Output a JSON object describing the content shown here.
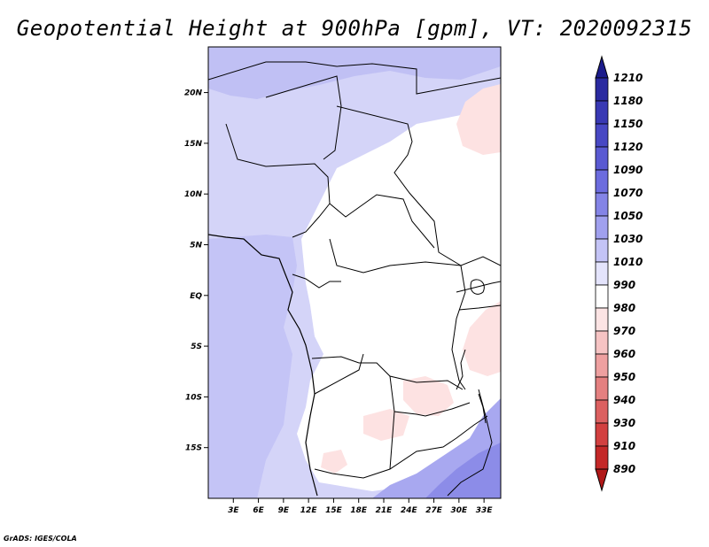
{
  "title": "Geopotential Height at 900hPa [gpm], VT: 2020092315",
  "footer": "GrADS: IGES/COLA",
  "map": {
    "lat_labels": [
      "20N",
      "15N",
      "10N",
      "5N",
      "EQ",
      "5S",
      "10S",
      "15S"
    ],
    "lat_values": [
      20,
      15,
      10,
      5,
      0,
      -5,
      -10,
      -15
    ],
    "lon_labels": [
      "3E",
      "6E",
      "9E",
      "12E",
      "15E",
      "18E",
      "21E",
      "24E",
      "27E",
      "30E",
      "33E"
    ],
    "lon_values": [
      3,
      6,
      9,
      12,
      15,
      18,
      21,
      24,
      27,
      30,
      33
    ],
    "lat_range": [
      -20,
      24.5
    ],
    "lon_range": [
      0,
      35
    ]
  },
  "colorbar": {
    "labels": [
      "1210",
      "1180",
      "1150",
      "1120",
      "1090",
      "1070",
      "1050",
      "1030",
      "1010",
      "990",
      "980",
      "970",
      "960",
      "950",
      "940",
      "930",
      "910",
      "890"
    ],
    "colors": [
      "#1c1c8c",
      "#2a2aa0",
      "#3939b4",
      "#4848c4",
      "#5a5ad2",
      "#6c6cde",
      "#8484e6",
      "#a0a0ee",
      "#c4c4f6",
      "#e4e4fc",
      "#ffffff",
      "#fce4e4",
      "#f6c4c4",
      "#eea0a0",
      "#e48080",
      "#dc6060",
      "#d24040",
      "#c42828",
      "#b01818"
    ]
  }
}
